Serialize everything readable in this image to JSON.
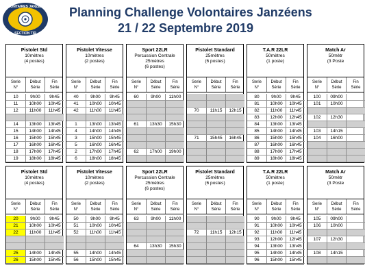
{
  "header": {
    "title": "Planning Challenge Volontaires Janzéens",
    "subtitle": "21 / 22 Septembre 2019",
    "logo_top_text": "VOLONTAIRES JANZEENS",
    "logo_bottom_text": "SECTION TIR"
  },
  "colors": {
    "title": "#1f3a66",
    "grey_cell": "#cfcfcf",
    "highlight": "#ffff00"
  },
  "column_labels": {
    "serie_1": "Serie",
    "serie_2": "N°",
    "debut_1": "Début",
    "debut_2": "Série",
    "fin_1": "Fin",
    "fin_2": "Série"
  },
  "days": [
    {
      "groups": [
        {
          "name": "Pistolet Std",
          "sub": "",
          "dist": "10mètres",
          "posts": "(4 postes)",
          "rows": [
            [
              "10",
              "9h00",
              "9h45"
            ],
            [
              "11",
              "10h00",
              "10h45"
            ],
            [
              "12",
              "11h00",
              "11h45"
            ],
            [
              "",
              "",
              ""
            ],
            [
              "14",
              "13h00",
              "13h45"
            ],
            [
              "15",
              "14h00",
              "14h45"
            ],
            [
              "16",
              "15h00",
              "15h45"
            ],
            [
              "17",
              "16h00",
              "16h45"
            ],
            [
              "18",
              "17h00",
              "17h45"
            ],
            [
              "19",
              "18h00",
              "18h45"
            ]
          ]
        },
        {
          "name": "Pistolet Vitesse",
          "sub": "",
          "dist": "10mètres",
          "posts": "(2 postes)",
          "rows": [
            [
              "40",
              "9h00",
              "9h45"
            ],
            [
              "41",
              "10h00",
              "10h45"
            ],
            [
              "42",
              "11h00",
              "11h45"
            ],
            [
              "",
              "",
              ""
            ],
            [
              "1",
              "13h00",
              "13h45"
            ],
            [
              "4",
              "14h00",
              "14h45"
            ],
            [
              "3",
              "15h00",
              "15h45"
            ],
            [
              "5",
              "16h00",
              "16h45"
            ],
            [
              "2",
              "17h00",
              "17h45"
            ],
            [
              "6",
              "18h00",
              "18h45"
            ]
          ]
        },
        {
          "name": "Sport 22LR",
          "sub": "Percussion Centrale",
          "dist": "25mètres",
          "posts": "(6 postes)",
          "rows": [
            [
              "60",
              "9h00",
              "11h00"
            ],
            [
              "",
              "",
              ""
            ],
            [
              "",
              "",
              ""
            ],
            [
              "",
              "",
              ""
            ],
            [
              "61",
              "13h30",
              "15h30"
            ],
            [
              "",
              "",
              ""
            ],
            [
              "",
              "",
              ""
            ],
            [
              "",
              "",
              ""
            ],
            [
              "62",
              "17h00",
              "19h00"
            ],
            [
              "",
              "",
              ""
            ]
          ]
        },
        {
          "name": "Pistolet Standard",
          "sub": "",
          "dist": "25mètres",
          "posts": "(6 postes)",
          "rows": [
            [
              "",
              "",
              ""
            ],
            [
              "",
              "",
              ""
            ],
            [
              "70",
              "11h15",
              "12h15"
            ],
            [
              "",
              "",
              ""
            ],
            [
              "",
              "",
              ""
            ],
            [
              "",
              "",
              ""
            ],
            [
              "71",
              "15h45",
              "16h45"
            ],
            [
              "",
              "",
              ""
            ],
            [
              "",
              "",
              ""
            ],
            [
              "",
              "",
              ""
            ]
          ]
        },
        {
          "name": "T.A.R 22LR",
          "sub": "",
          "dist": "50mètres",
          "posts": "(1 poste)",
          "rows": [
            [
              "80",
              "9h00",
              "9h45"
            ],
            [
              "81",
              "10h00",
              "10h45"
            ],
            [
              "82",
              "11h00",
              "11h45"
            ],
            [
              "83",
              "12h00",
              "12h45"
            ],
            [
              "84",
              "13h00",
              "13h45"
            ],
            [
              "85",
              "14h00",
              "14h45"
            ],
            [
              "86",
              "15h00",
              "15h45"
            ],
            [
              "87",
              "16h00",
              "16h45"
            ],
            [
              "88",
              "17h00",
              "17h45"
            ],
            [
              "89",
              "18h00",
              "18h45"
            ]
          ]
        },
        {
          "name": "Match Ar",
          "sub": "",
          "dist": "50mètr",
          "posts": "(3 Poste",
          "rows": [
            [
              "100",
              "09h00",
              ""
            ],
            [
              "101",
              "10h00",
              ""
            ],
            [
              "",
              "",
              ""
            ],
            [
              "102",
              "12h30",
              ""
            ],
            [
              "",
              "",
              ""
            ],
            [
              "103",
              "14h15",
              ""
            ],
            [
              "104",
              "16h00",
              ""
            ],
            [
              "",
              "",
              ""
            ],
            [
              "",
              "",
              ""
            ],
            [
              "",
              "",
              ""
            ]
          ]
        }
      ]
    },
    {
      "groups": [
        {
          "name": "Pistolet Std",
          "sub": "",
          "dist": "10mètres",
          "posts": "(4 postes)",
          "rows": [
            [
              "20",
              "9h00",
              "9h45"
            ],
            [
              "21",
              "10h00",
              "10h45"
            ],
            [
              "22",
              "11h00",
              "11h45"
            ],
            [
              "",
              "",
              ""
            ],
            [
              "",
              "",
              ""
            ],
            [
              "25",
              "14h00",
              "14h45"
            ],
            [
              "26",
              "15h00",
              "15h45"
            ]
          ]
        },
        {
          "name": "Pistolet Vitesse",
          "sub": "",
          "dist": "10mètres",
          "posts": "(2 postes)",
          "rows": [
            [
              "50",
              "9h00",
              "9h45"
            ],
            [
              "51",
              "10h00",
              "10h45"
            ],
            [
              "52",
              "11h00",
              "11h45"
            ],
            [
              "",
              "",
              ""
            ],
            [
              "",
              "",
              ""
            ],
            [
              "55",
              "14h00",
              "14h45"
            ],
            [
              "56",
              "15h00",
              "15h45"
            ]
          ]
        },
        {
          "name": "Sport 22LR",
          "sub": "Percussion Centrale",
          "dist": "25mètres",
          "posts": "(6 postes)",
          "rows": [
            [
              "63",
              "9h00",
              "11h00"
            ],
            [
              "",
              "",
              ""
            ],
            [
              "",
              "",
              ""
            ],
            [
              "",
              "",
              ""
            ],
            [
              "64",
              "13h30",
              "15h30"
            ],
            [
              "",
              "",
              ""
            ],
            [
              "",
              "",
              ""
            ]
          ]
        },
        {
          "name": "Pistolet Standard",
          "sub": "",
          "dist": "25mètres",
          "posts": "(6 postes)",
          "rows": [
            [
              "",
              "",
              ""
            ],
            [
              "",
              "",
              ""
            ],
            [
              "72",
              "11h15",
              "12h15"
            ],
            [
              "",
              "",
              ""
            ],
            [
              "",
              "",
              ""
            ],
            [
              "",
              "",
              ""
            ],
            [
              "",
              "",
              ""
            ]
          ]
        },
        {
          "name": "T.A.R 22LR",
          "sub": "",
          "dist": "50mètres",
          "posts": "(1 poste)",
          "rows": [
            [
              "90",
              "9h00",
              "9h45"
            ],
            [
              "91",
              "10h00",
              "10h45"
            ],
            [
              "92",
              "11h00",
              "11h45"
            ],
            [
              "93",
              "12h00",
              "12h45"
            ],
            [
              "94",
              "13h00",
              "13h45"
            ],
            [
              "95",
              "14h00",
              "14h45"
            ],
            [
              "96",
              "15h00",
              "15h45"
            ]
          ]
        },
        {
          "name": "Match Ar",
          "sub": "",
          "dist": "50mètr",
          "posts": "(3 Poste",
          "rows": [
            [
              "105",
              "09h00",
              ""
            ],
            [
              "106",
              "10h00",
              ""
            ],
            [
              "",
              "",
              ""
            ],
            [
              "107",
              "12h30",
              ""
            ],
            [
              "",
              "",
              ""
            ],
            [
              "108",
              "14h15",
              ""
            ],
            [
              "",
              "",
              ""
            ]
          ]
        }
      ]
    }
  ]
}
